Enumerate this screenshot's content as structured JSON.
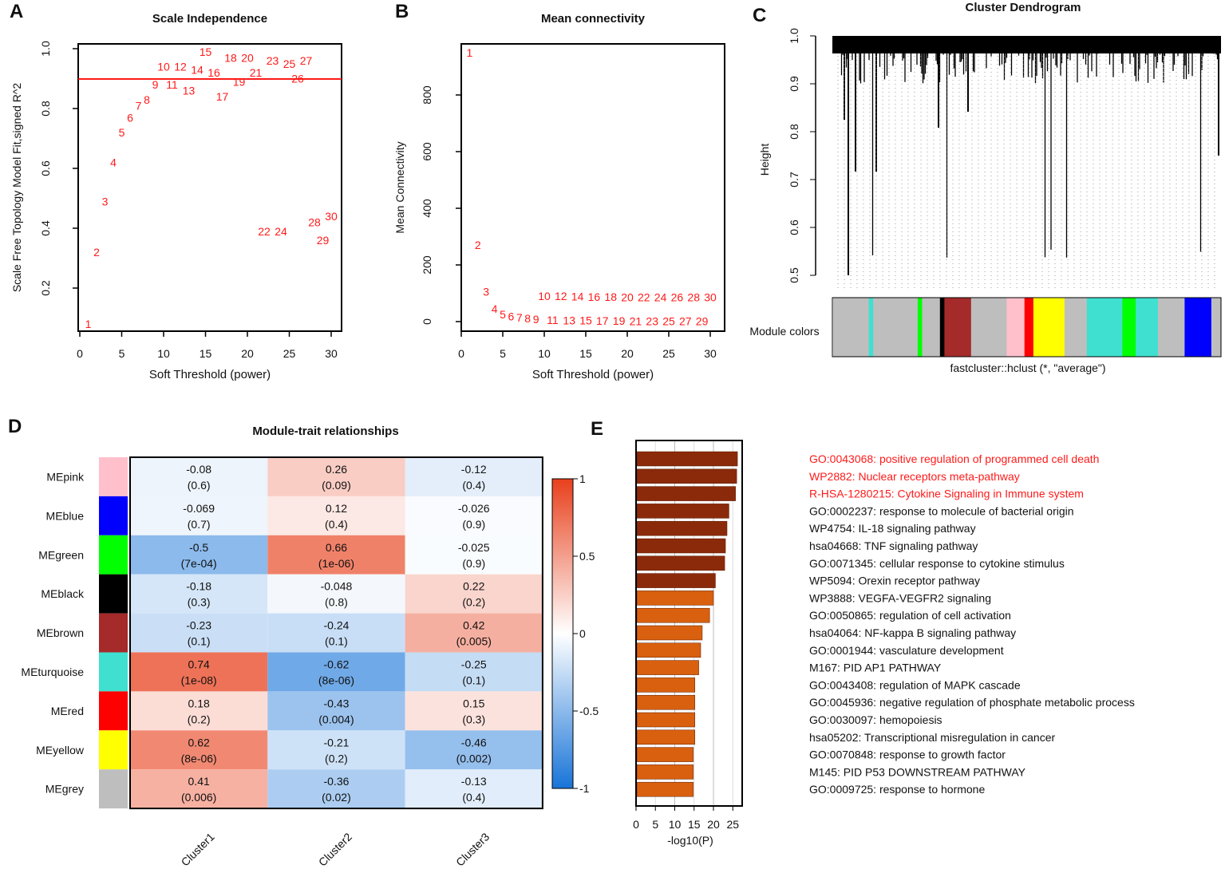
{
  "colors": {
    "red": "#FF1A1A",
    "dark_bar": "#8B2A0A",
    "light_bar": "#D9600E",
    "neg": "#1874D8",
    "pos": "#E8401C"
  },
  "chart_data": [
    {
      "panel": "A",
      "type": "scatter",
      "title": "Scale Independence",
      "xlabel": "Soft Threshold (power)",
      "ylabel": "Scale Free Topology Model Fit,signed R^2",
      "xlim": [
        0,
        31
      ],
      "ylim": [
        0.05,
        1.02
      ],
      "xticks": [
        0,
        5,
        10,
        15,
        20,
        25,
        30
      ],
      "yticks": [
        0.2,
        0.4,
        0.6,
        0.8,
        1.0
      ],
      "ytick_labels": [
        "0.2",
        "0.4",
        "0.6",
        "0.8",
        "1.0"
      ],
      "threshold": 0.9,
      "x": [
        1,
        2,
        3,
        4,
        5,
        6,
        7,
        8,
        9,
        10,
        11,
        12,
        13,
        14,
        15,
        16,
        17,
        18,
        19,
        20,
        21,
        22,
        23,
        24,
        25,
        26,
        27,
        28,
        29,
        30
      ],
      "y": [
        0.08,
        0.32,
        0.49,
        0.62,
        0.72,
        0.77,
        0.81,
        0.83,
        0.88,
        0.9,
        0.92,
        0.94,
        0.94,
        0.93,
        0.95,
        0.96,
        0.96,
        0.97,
        0.97,
        0.97,
        0.96,
        0.39,
        0.96,
        0.39,
        0.95,
        0.94,
        0.96,
        0.42,
        0.4,
        0.4
      ]
    },
    {
      "panel": "B",
      "type": "scatter",
      "title": "Mean connectivity",
      "xlabel": "Soft Threshold (power)",
      "ylabel": "Mean Connectivity",
      "xlim": [
        0,
        31
      ],
      "ylim": [
        -20,
        980
      ],
      "xticks": [
        0,
        5,
        10,
        15,
        20,
        25,
        30
      ],
      "yticks": [
        0,
        200,
        400,
        600,
        800
      ],
      "x": [
        1,
        2,
        3,
        4,
        5,
        6,
        7,
        8,
        9,
        10,
        11,
        12,
        13,
        14,
        15,
        16,
        17,
        18,
        19,
        20,
        21,
        22,
        23,
        24,
        25,
        26,
        27,
        28,
        29,
        30
      ],
      "y": [
        950,
        270,
        105,
        45,
        25,
        18,
        14,
        11,
        8,
        6,
        5,
        5,
        4,
        4,
        4,
        3,
        3,
        3,
        3,
        2,
        2,
        2,
        2,
        2,
        2,
        2,
        2,
        2,
        2,
        2
      ]
    },
    {
      "panel": "C",
      "type": "dendrogram",
      "title": "Cluster Dendrogram",
      "ylabel": "Height",
      "xlabel": "fastcluster::hclust (*, \"average\")",
      "ylim": [
        0.5,
        1.0
      ],
      "yticks": [
        0.5,
        0.6,
        0.7,
        0.8,
        0.9,
        1.0
      ],
      "ytick_labels": [
        "0.5",
        "0.6",
        "0.7",
        "0.8",
        "0.9",
        "1.0"
      ],
      "module_label": "Module colors",
      "module_colors": [
        "#BEBEBE",
        "#40E0D0",
        "#BEBEBE",
        "#00FF00",
        "#BEBEBE",
        "#000000",
        "#A52A2A",
        "#BEBEBE",
        "#FFC0CB",
        "#FF0000",
        "#FFFF00",
        "#BEBEBE",
        "#40E0D0",
        "#00FF00",
        "#40E0D0",
        "#BEBEBE",
        "#0000FF",
        "#BEBEBE"
      ],
      "module_weights": [
        8,
        1,
        10,
        1,
        4,
        1,
        6,
        8,
        4,
        2,
        7,
        5,
        8,
        3,
        5,
        6,
        6,
        2
      ]
    },
    {
      "panel": "D",
      "type": "heatmap",
      "title": "Module-trait relationships",
      "rows": [
        "MEpink",
        "MEblue",
        "MEgreen",
        "MEblack",
        "MEbrown",
        "MEturquoise",
        "MEred",
        "MEyellow",
        "MEgrey"
      ],
      "row_colors": [
        "#FFC0CB",
        "#0000FF",
        "#00FF00",
        "#000000",
        "#A52A2A",
        "#40E0D0",
        "#FF0000",
        "#FFFF00",
        "#BEBEBE"
      ],
      "columns": [
        "Cluster1",
        "Cluster2",
        "Cluster3"
      ],
      "values": [
        [
          -0.08,
          0.26,
          -0.12
        ],
        [
          -0.069,
          0.12,
          -0.026
        ],
        [
          -0.5,
          0.66,
          -0.025
        ],
        [
          -0.18,
          -0.048,
          0.22
        ],
        [
          -0.23,
          -0.24,
          0.42
        ],
        [
          0.74,
          -0.62,
          -0.25
        ],
        [
          0.18,
          -0.43,
          0.15
        ],
        [
          0.62,
          -0.21,
          -0.46
        ],
        [
          0.41,
          -0.36,
          -0.13
        ]
      ],
      "value_labels": [
        [
          "-0.08",
          "0.26",
          "-0.12"
        ],
        [
          "-0.069",
          "0.12",
          "-0.026"
        ],
        [
          "-0.5",
          "0.66",
          "-0.025"
        ],
        [
          "-0.18",
          "-0.048",
          "0.22"
        ],
        [
          "-0.23",
          "-0.24",
          "0.42"
        ],
        [
          "0.74",
          "-0.62",
          "-0.25"
        ],
        [
          "0.18",
          "-0.43",
          "0.15"
        ],
        [
          "0.62",
          "-0.21",
          "-0.46"
        ],
        [
          "0.41",
          "-0.36",
          "-0.13"
        ]
      ],
      "pvalues": [
        [
          "(0.6)",
          "(0.09)",
          "(0.4)"
        ],
        [
          "(0.7)",
          "(0.4)",
          "(0.9)"
        ],
        [
          "(7e-04)",
          "(1e-06)",
          "(0.9)"
        ],
        [
          "(0.3)",
          "(0.8)",
          "(0.2)"
        ],
        [
          "(0.1)",
          "(0.1)",
          "(0.005)"
        ],
        [
          "(1e-08)",
          "(8e-06)",
          "(0.1)"
        ],
        [
          "(0.2)",
          "(0.004)",
          "(0.3)"
        ],
        [
          "(8e-06)",
          "(0.2)",
          "(0.002)"
        ],
        [
          "(0.006)",
          "(0.02)",
          "(0.4)"
        ]
      ],
      "legend_ticks": [
        1,
        0.5,
        0,
        -0.5,
        -1
      ],
      "legend_labels": [
        "1",
        "0.5",
        "0",
        "-0.5",
        "-1"
      ]
    },
    {
      "panel": "E",
      "type": "bar",
      "orientation": "horizontal",
      "xlabel": "-log10(P)",
      "xlim": [
        0,
        27
      ],
      "xticks": [
        0,
        5,
        10,
        15,
        20,
        25
      ],
      "categories": [
        "GO:0043068: positive regulation of programmed cell death",
        "WP2882: Nuclear receptors meta-pathway",
        "R-HSA-1280215: Cytokine Signaling in Immune system",
        "GO:0002237: response to molecule of bacterial origin",
        "WP4754: IL-18 signaling pathway",
        "hsa04668: TNF signaling pathway",
        "GO:0071345: cellular response to cytokine stimulus",
        "WP5094: Orexin receptor pathway",
        "WP3888: VEGFA-VEGFR2 signaling",
        "GO:0050865: regulation of cell activation",
        "hsa04064: NF-kappa B signaling pathway",
        "GO:0001944: vasculature development",
        "M167: PID AP1 PATHWAY",
        "GO:0043408: regulation of MAPK cascade",
        "GO:0045936: negative regulation of phosphate metabolic process",
        "GO:0030097: hemopoiesis",
        "hsa05202: Transcriptional misregulation in cancer",
        "GO:0070848: response to growth factor",
        "M145: PID P53 DOWNSTREAM PATHWAY",
        "GO:0009725: response to hormone"
      ],
      "values": [
        26.0,
        25.8,
        25.5,
        23.8,
        23.3,
        22.9,
        22.7,
        20.3,
        19.8,
        18.8,
        16.9,
        16.5,
        16.0,
        15.0,
        15.0,
        15.0,
        15.0,
        14.6,
        14.6,
        14.6
      ],
      "highlighted": [
        true,
        true,
        true,
        false,
        false,
        false,
        false,
        false,
        false,
        false,
        false,
        false,
        false,
        false,
        false,
        false,
        false,
        false,
        false,
        false
      ],
      "dark": [
        true,
        true,
        true,
        true,
        true,
        true,
        true,
        true,
        false,
        false,
        false,
        false,
        false,
        false,
        false,
        false,
        false,
        false,
        false,
        false
      ]
    }
  ],
  "panel_letters": [
    "A",
    "B",
    "C",
    "D",
    "E"
  ]
}
